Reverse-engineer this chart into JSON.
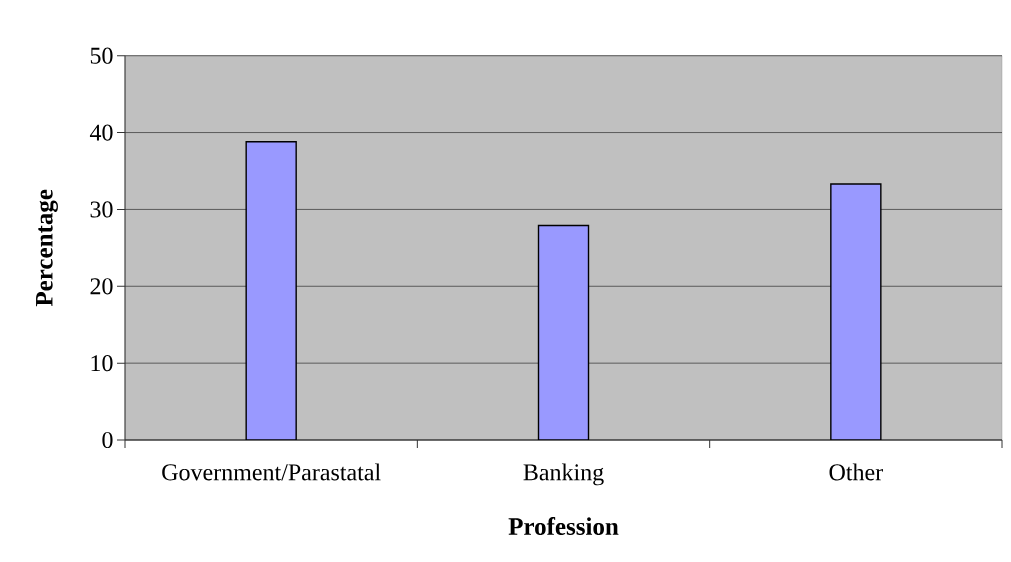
{
  "chart_data": {
    "type": "bar",
    "categories": [
      "Government/Parastatal",
      "Banking",
      "Other"
    ],
    "values": [
      38.8,
      27.9,
      33.3
    ],
    "color": "#9999ff",
    "xlabel": "Profession",
    "ylabel": "Percentage",
    "ylim": [
      0,
      50
    ],
    "yticks": [
      0,
      10,
      20,
      30,
      40,
      50
    ],
    "grid": "y"
  }
}
